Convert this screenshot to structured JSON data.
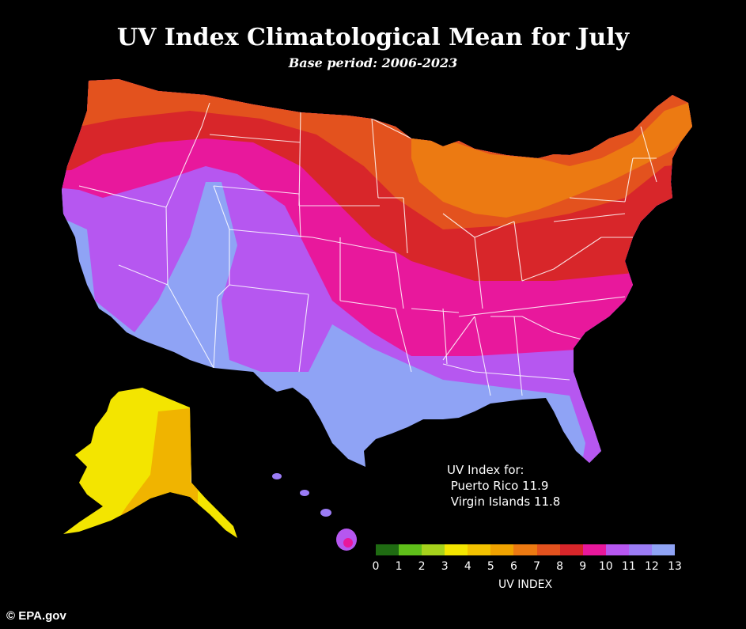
{
  "title": "UV Index Climatological Mean for July",
  "subtitle": "Base period: 2006-2023",
  "notes": {
    "heading": "UV Index for:",
    "lines": [
      " Puerto Rico 11.9",
      " Virgin Islands 11.8"
    ]
  },
  "legend": {
    "title": "UV INDEX",
    "ticks": [
      "0",
      "1",
      "2",
      "3",
      "4",
      "5",
      "6",
      "7",
      "8",
      "9",
      "10",
      "11",
      "12",
      "13"
    ],
    "colors": [
      "#1f6b12",
      "#5fbf1a",
      "#a6d21c",
      "#f3e500",
      "#f2c200",
      "#f0a300",
      "#ec7a12",
      "#e3521e",
      "#d8262a",
      "#e8189c",
      "#b657f0",
      "#9b7cf5",
      "#8fa3f5"
    ]
  },
  "zones": {
    "high": "#8fa3f5",
    "very_high": "#b657f0",
    "pink": "#e8189c",
    "red": "#d8262a",
    "red_orange": "#e3521e",
    "orange": "#ec7a12",
    "yellow": "#f3e500",
    "amber": "#f0b400"
  },
  "credit": "© EPA.gov"
}
